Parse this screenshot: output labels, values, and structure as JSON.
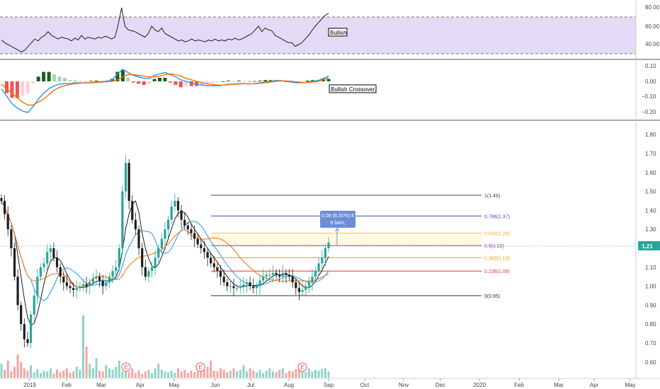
{
  "colors": {
    "up": "#26a69a",
    "down": "#ef5350",
    "candle_down_body": "#1e1e1e",
    "rsi_line": "#1e1e1e",
    "rsi_band": "#d9cdf2",
    "macd_line": "#2196f3",
    "signal_line": "#ff6d00",
    "last_price": "#26a69a",
    "fib_1": "#444444",
    "fib_0786": "#3f51b5",
    "fib_0618": "#f9a825",
    "fib_05": "#9c27b0",
    "fib_0382": "#ff9800",
    "fib_0236": "#e53935",
    "fib_0": "#333333",
    "measure_box": "#6b8ed6"
  },
  "rsi_panel": {
    "ticks": [
      "80.00",
      "60.00",
      "40.00"
    ],
    "label": "Bullish"
  },
  "macd_panel": {
    "ticks": [
      "0.10",
      "0.00",
      "−0.10",
      "−0.20"
    ],
    "label": "Bullish Crossover."
  },
  "price_panel": {
    "ticks": [
      "1.80",
      "1.70",
      "1.60",
      "1.50",
      "1.40",
      "1.30",
      "1.20",
      "1.10",
      "1.00",
      "0.90",
      "0.80",
      "0.70",
      "0.60"
    ],
    "last_price_label": "1.21",
    "measure_line1": "0.08 (6.31%) 8",
    "measure_line2": "8 bars,",
    "fib_levels": [
      {
        "label": "1(1.48)",
        "value": 1.48,
        "color_key": "fib_1"
      },
      {
        "label": "0.786(1.37)",
        "value": 1.37,
        "color_key": "fib_0786"
      },
      {
        "label": "0.618(1.28)",
        "value": 1.28,
        "color_key": "fib_0618"
      },
      {
        "label": "0.5(1.22)",
        "value": 1.215,
        "color_key": "fib_05"
      },
      {
        "label": "0.382(1.15)",
        "value": 1.15,
        "color_key": "fib_0382"
      },
      {
        "label": "0.236(1.08)",
        "value": 1.08,
        "color_key": "fib_0236"
      },
      {
        "label": "0(0.95)",
        "value": 0.95,
        "color_key": "fib_0"
      }
    ],
    "earnings_marker": "E"
  },
  "time_axis": [
    "2019",
    "Feb",
    "Mar",
    "Apr",
    "May",
    "Jun",
    "Jul",
    "Aug",
    "Sep",
    "Oct",
    "Nov",
    "Dec",
    "2020",
    "Feb",
    "Mar",
    "Apr",
    "May"
  ],
  "chart_data": {
    "type": "candlestick",
    "price_close": [
      1.45,
      1.38,
      1.3,
      1.2,
      1.05,
      0.9,
      0.8,
      0.72,
      0.7,
      0.85,
      0.95,
      1.05,
      1.1,
      1.12,
      1.18,
      1.2,
      1.15,
      1.1,
      1.05,
      1.02,
      1.0,
      0.99,
      0.98,
      0.99,
      1.0,
      1.01,
      1.0,
      1.02,
      1.04,
      1.05,
      1.03,
      1.0,
      1.02,
      1.05,
      1.08,
      1.1,
      1.2,
      1.5,
      1.65,
      1.45,
      1.35,
      1.3,
      1.2,
      1.1,
      1.05,
      1.08,
      1.1,
      1.15,
      1.2,
      1.25,
      1.3,
      1.35,
      1.42,
      1.45,
      1.4,
      1.35,
      1.32,
      1.3,
      1.28,
      1.25,
      1.22,
      1.2,
      1.18,
      1.15,
      1.12,
      1.1,
      1.08,
      1.05,
      1.02,
      1.0,
      1.0,
      0.99,
      0.99,
      1.0,
      1.01,
      1.02,
      1.0,
      0.99,
      1.0,
      1.03,
      1.05,
      1.06,
      1.06,
      1.07,
      1.06,
      1.05,
      1.07,
      1.06,
      1.05,
      1.02,
      0.99,
      0.97,
      0.98,
      1.0,
      1.02,
      1.05,
      1.08,
      1.12,
      1.15,
      1.2,
      1.23
    ],
    "macd": [
      -0.05,
      -0.1,
      -0.15,
      -0.18,
      -0.2,
      -0.21,
      -0.17,
      -0.12,
      -0.08,
      -0.05,
      -0.03,
      -0.02,
      -0.015,
      -0.015,
      -0.01,
      -0.01,
      -0.01,
      -0.008,
      -0.005,
      -0.003,
      0.0,
      0.01,
      0.05,
      0.08,
      0.06,
      0.04,
      0.03,
      0.02,
      0.02,
      0.04,
      0.05,
      0.06,
      0.045,
      0.03,
      0.01,
      0.0,
      -0.01,
      -0.02,
      -0.025,
      -0.03,
      -0.03,
      -0.03,
      -0.025,
      -0.02,
      -0.018,
      -0.015,
      -0.015,
      -0.018,
      -0.015,
      -0.01,
      -0.005,
      0.0,
      0.005,
      0.005,
      0.0,
      -0.005,
      -0.01,
      -0.01,
      -0.005,
      0.0,
      0.005,
      0.02,
      0.035
    ],
    "signal": [
      -0.02,
      -0.05,
      -0.08,
      -0.11,
      -0.14,
      -0.16,
      -0.16,
      -0.14,
      -0.12,
      -0.09,
      -0.06,
      -0.04,
      -0.03,
      -0.02,
      -0.015,
      -0.012,
      -0.01,
      -0.01,
      -0.008,
      -0.005,
      -0.003,
      0.0,
      0.01,
      0.03,
      0.045,
      0.045,
      0.04,
      0.035,
      0.03,
      0.03,
      0.035,
      0.045,
      0.05,
      0.045,
      0.035,
      0.02,
      0.01,
      0.0,
      -0.01,
      -0.017,
      -0.022,
      -0.025,
      -0.025,
      -0.023,
      -0.02,
      -0.018,
      -0.016,
      -0.016,
      -0.016,
      -0.013,
      -0.01,
      -0.005,
      0.0,
      0.003,
      0.003,
      0.0,
      -0.004,
      -0.008,
      -0.008,
      -0.005,
      0.0,
      0.01,
      0.025
    ],
    "rsi": [
      45,
      42,
      40,
      38,
      36,
      34,
      32,
      34,
      38,
      42,
      46,
      44,
      48,
      50,
      54,
      50,
      48,
      46,
      48,
      47,
      46,
      44,
      47,
      45,
      50,
      46,
      48,
      47,
      46,
      48,
      47,
      49,
      48,
      46,
      48,
      62,
      80,
      60,
      56,
      55,
      54,
      52,
      50,
      48,
      52,
      60,
      56,
      54,
      58,
      52,
      50,
      48,
      46,
      44,
      45,
      43,
      44,
      46,
      44,
      45,
      44,
      43,
      45,
      44,
      46,
      44,
      45,
      44,
      46,
      45,
      47,
      45,
      46,
      48,
      50,
      52,
      56,
      60,
      54,
      58,
      56,
      55,
      50,
      48,
      46,
      44,
      42,
      42,
      38,
      40,
      42,
      46,
      50,
      55,
      60,
      64,
      68,
      72,
      74
    ]
  }
}
